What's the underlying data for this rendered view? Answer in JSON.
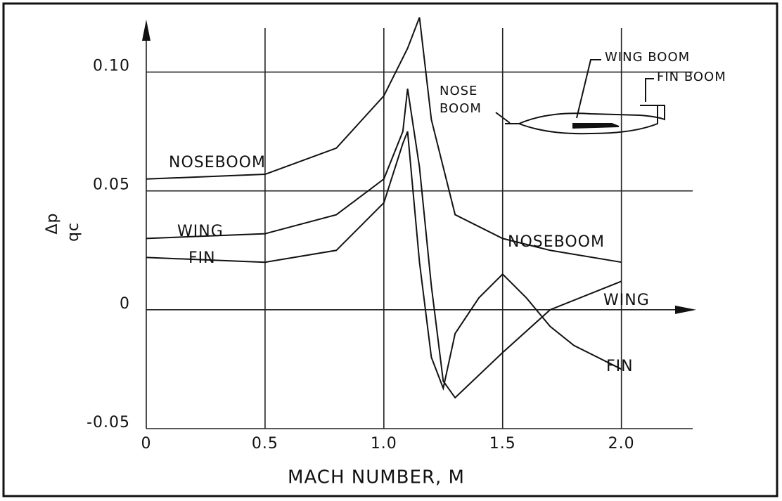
{
  "chart_data": {
    "type": "line",
    "y_label_top": "Δp",
    "y_label_bottom": "qc",
    "x_label": "MACH NUMBER, M",
    "xlim": [
      0,
      2.3
    ],
    "ylim": [
      -0.05,
      0.125
    ],
    "xticks": [
      0,
      0.5,
      {
        "value": 1.0,
        "label": "1.0"
      },
      1.5,
      {
        "value": 2.0,
        "label": "2.0"
      }
    ],
    "yticks": [
      -0.05,
      0,
      0.05,
      {
        "value": 0.1,
        "label": "0.10"
      }
    ],
    "grid": true,
    "series": [
      {
        "name": "NOSEBOOM",
        "color": "#111111",
        "x": [
          0,
          0.5,
          0.8,
          1.0,
          1.1,
          1.15,
          1.2,
          1.3,
          1.5,
          1.7,
          2.0
        ],
        "values": [
          0.055,
          0.057,
          0.068,
          0.09,
          0.11,
          0.123,
          0.08,
          0.04,
          0.03,
          0.025,
          0.02
        ]
      },
      {
        "name": "WING",
        "color": "#111111",
        "x": [
          0,
          0.5,
          0.8,
          1.0,
          1.08,
          1.1,
          1.15,
          1.2,
          1.25,
          1.3,
          1.5,
          1.7,
          2.0
        ],
        "values": [
          0.03,
          0.032,
          0.04,
          0.055,
          0.075,
          0.093,
          0.06,
          0.01,
          -0.03,
          -0.037,
          -0.018,
          0.0,
          0.012
        ]
      },
      {
        "name": "FIN",
        "color": "#111111",
        "x": [
          0,
          0.5,
          0.8,
          1.0,
          1.08,
          1.1,
          1.15,
          1.2,
          1.25,
          1.3,
          1.4,
          1.5,
          1.6,
          1.7,
          1.8,
          2.0
        ],
        "values": [
          0.022,
          0.02,
          0.025,
          0.045,
          0.07,
          0.075,
          0.02,
          -0.02,
          -0.033,
          -0.01,
          0.005,
          0.015,
          0.005,
          -0.007,
          -0.015,
          -0.025
        ]
      }
    ],
    "annotations": [
      "NOSEBOOM",
      "WING",
      "FIN"
    ],
    "inset_labels": [
      "WING BOOM",
      "FIN BOOM",
      "NOSE",
      "BOOM"
    ]
  }
}
